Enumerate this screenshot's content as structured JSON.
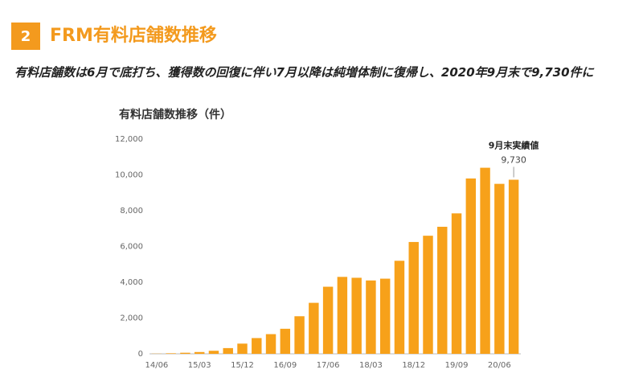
{
  "header": {
    "number": "2",
    "title": "FRM有料店舗数推移",
    "subtitle": "有料店舗数は6月で底打ち、獲得数の回復に伴い7月以降は純増体制に復帰し、2020年9月末で9,730件に"
  },
  "chart_data": {
    "type": "bar",
    "title": "有料店舗数推移（件）",
    "categories": [
      "14/06",
      null,
      null,
      "15/03",
      null,
      null,
      "15/12",
      null,
      null,
      "16/09",
      null,
      null,
      "17/06",
      null,
      null,
      "18/03",
      null,
      null,
      "18/12",
      null,
      null,
      "19/09",
      null,
      null,
      "20/06",
      null
    ],
    "values": [
      10,
      30,
      60,
      100,
      170,
      320,
      570,
      880,
      1100,
      1400,
      2100,
      2850,
      3750,
      4300,
      4250,
      4100,
      4200,
      5200,
      6250,
      6600,
      7100,
      7850,
      9800,
      10400,
      9500,
      9730
    ],
    "value_labels": [
      null,
      null,
      null,
      null,
      null,
      null,
      null,
      null,
      null,
      null,
      null,
      null,
      null,
      null,
      null,
      null,
      null,
      null,
      null,
      null,
      null,
      null,
      null,
      null,
      null,
      "9,730"
    ],
    "annotation": "9月末実績値",
    "color": "#f7a11a",
    "ylim": [
      0,
      12000
    ],
    "yticks": [
      0,
      {
        "value": 2000,
        "label": "2,000"
      },
      {
        "value": 4000,
        "label": "4,000"
      },
      {
        "value": 6000,
        "label": "6,000"
      },
      {
        "value": 8000,
        "label": "8,000"
      },
      {
        "value": 10000,
        "label": "10,000"
      },
      {
        "value": 12000,
        "label": "12,000"
      }
    ],
    "grid": false
  }
}
